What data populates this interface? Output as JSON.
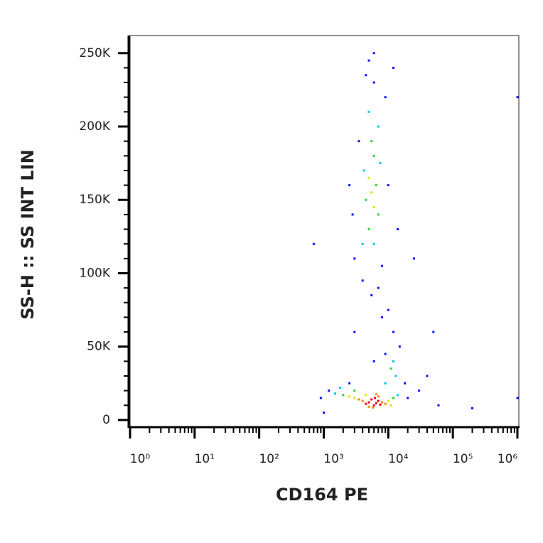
{
  "chart_data": {
    "type": "scatter",
    "x_label": "CD164 PE",
    "y_label": "SS-H :: SS INT LIN",
    "xscale": "log",
    "xlim": [
      1,
      1000000
    ],
    "xticks": [
      {
        "value": 1,
        "label": "10⁰"
      },
      {
        "value": 10,
        "label": "10¹"
      },
      {
        "value": 100,
        "label": "10²"
      },
      {
        "value": 1000,
        "label": "10³"
      },
      {
        "value": 10000,
        "label": "10⁴"
      },
      {
        "value": 100000,
        "label": "10⁵"
      },
      {
        "value": 1000000,
        "label": "10⁶"
      }
    ],
    "xminorticks": [
      2,
      3,
      4,
      5,
      6,
      7,
      8,
      9,
      20,
      30,
      40,
      50,
      60,
      70,
      80,
      90,
      200,
      300,
      400,
      500,
      600,
      700,
      800,
      900,
      2000,
      3000,
      4000,
      5000,
      6000,
      7000,
      8000,
      9000,
      20000,
      30000,
      40000,
      50000,
      60000,
      70000,
      80000,
      90000,
      200000,
      300000,
      400000,
      500000,
      600000,
      700000,
      800000,
      900000
    ],
    "ylim": [
      -4400,
      262000
    ],
    "yticks": [
      {
        "value": 0,
        "label": "0"
      },
      {
        "value": 50000,
        "label": "50K"
      },
      {
        "value": 100000,
        "label": "100K"
      },
      {
        "value": 150000,
        "label": "150K"
      },
      {
        "value": 200000,
        "label": "200K"
      },
      {
        "value": 250000,
        "label": "250K"
      }
    ],
    "yminorticks": [
      10000,
      20000,
      30000,
      40000,
      60000,
      70000,
      80000,
      90000,
      110000,
      120000,
      130000,
      140000,
      160000,
      170000,
      180000,
      190000,
      210000,
      220000,
      230000,
      240000
    ],
    "series": [
      {
        "color": "#0010ff",
        "x": [
          1200,
          900,
          20000,
          3000,
          8000,
          6000,
          5000,
          9000,
          3500,
          10000,
          12000,
          15000,
          8000,
          10000,
          2500,
          18000,
          4000,
          7000,
          14000,
          2800,
          6000,
          30000,
          60000,
          1000000,
          1000000,
          40000,
          50000,
          25000,
          2500,
          1000,
          700,
          200000,
          5500,
          9000,
          3000,
          6000,
          12000,
          4500
        ],
        "y": [
          20000,
          15000,
          15000,
          110000,
          105000,
          230000,
          245000,
          220000,
          190000,
          160000,
          60000,
          50000,
          70000,
          75000,
          25000,
          25000,
          95000,
          90000,
          130000,
          140000,
          250000,
          20000,
          10000,
          15000,
          220000,
          30000,
          60000,
          110000,
          160000,
          5000,
          120000,
          8000,
          85000,
          45000,
          60000,
          40000,
          240000,
          235000
        ]
      },
      {
        "color": "#00c8e0",
        "x": [
          1500,
          14000,
          4000,
          7000,
          5000,
          12000,
          9000,
          6000,
          4200,
          7500,
          1800,
          13000
        ],
        "y": [
          18000,
          17000,
          120000,
          200000,
          210000,
          40000,
          25000,
          120000,
          170000,
          175000,
          22000,
          30000
        ]
      },
      {
        "color": "#30d030",
        "x": [
          2000,
          12000,
          5000,
          6000,
          4500,
          6500,
          11000,
          3000,
          5500,
          7000
        ],
        "y": [
          17000,
          15000,
          130000,
          180000,
          150000,
          160000,
          35000,
          20000,
          190000,
          140000
        ]
      },
      {
        "color": "#e0e000",
        "x": [
          3000,
          10000,
          4500,
          5500,
          6000,
          5000,
          2500,
          11000
        ],
        "y": [
          15000,
          13000,
          17000,
          155000,
          145000,
          165000,
          16000,
          10000
        ]
      },
      {
        "color": "#ff8000",
        "x": [
          4000,
          8000,
          5000,
          7000,
          3500,
          9000,
          5800,
          6500
        ],
        "y": [
          13000,
          12000,
          9000,
          16000,
          14000,
          11000,
          8500,
          17500
        ]
      },
      {
        "color": "#e8001c",
        "x": [
          5000,
          6000,
          7000,
          5500,
          6500,
          4500,
          7500,
          6200
        ],
        "y": [
          12000,
          10000,
          13000,
          14000,
          11500,
          11000,
          10500,
          15000
        ]
      }
    ]
  }
}
